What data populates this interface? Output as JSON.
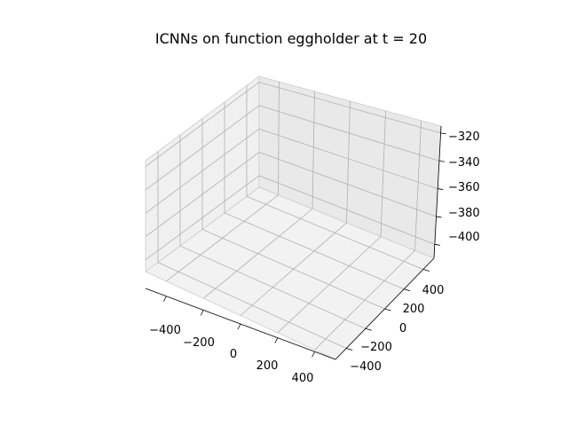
{
  "chart_data": {
    "type": "surface3d",
    "title": "ICNNs on function eggholder at t = 20",
    "xlabel": "",
    "ylabel": "",
    "zlabel": "",
    "x_ticks": [
      "−400",
      "−200",
      "0",
      "200",
      "400"
    ],
    "y_ticks": [
      "−400",
      "−200",
      "0",
      "200",
      "400"
    ],
    "z_ticks": [
      "−400",
      "−380",
      "−360",
      "−340",
      "−320"
    ],
    "xlim": [
      -512,
      512
    ],
    "ylim": [
      -512,
      512
    ],
    "zlim": [
      -410,
      -315
    ],
    "grid": true,
    "series": []
  }
}
